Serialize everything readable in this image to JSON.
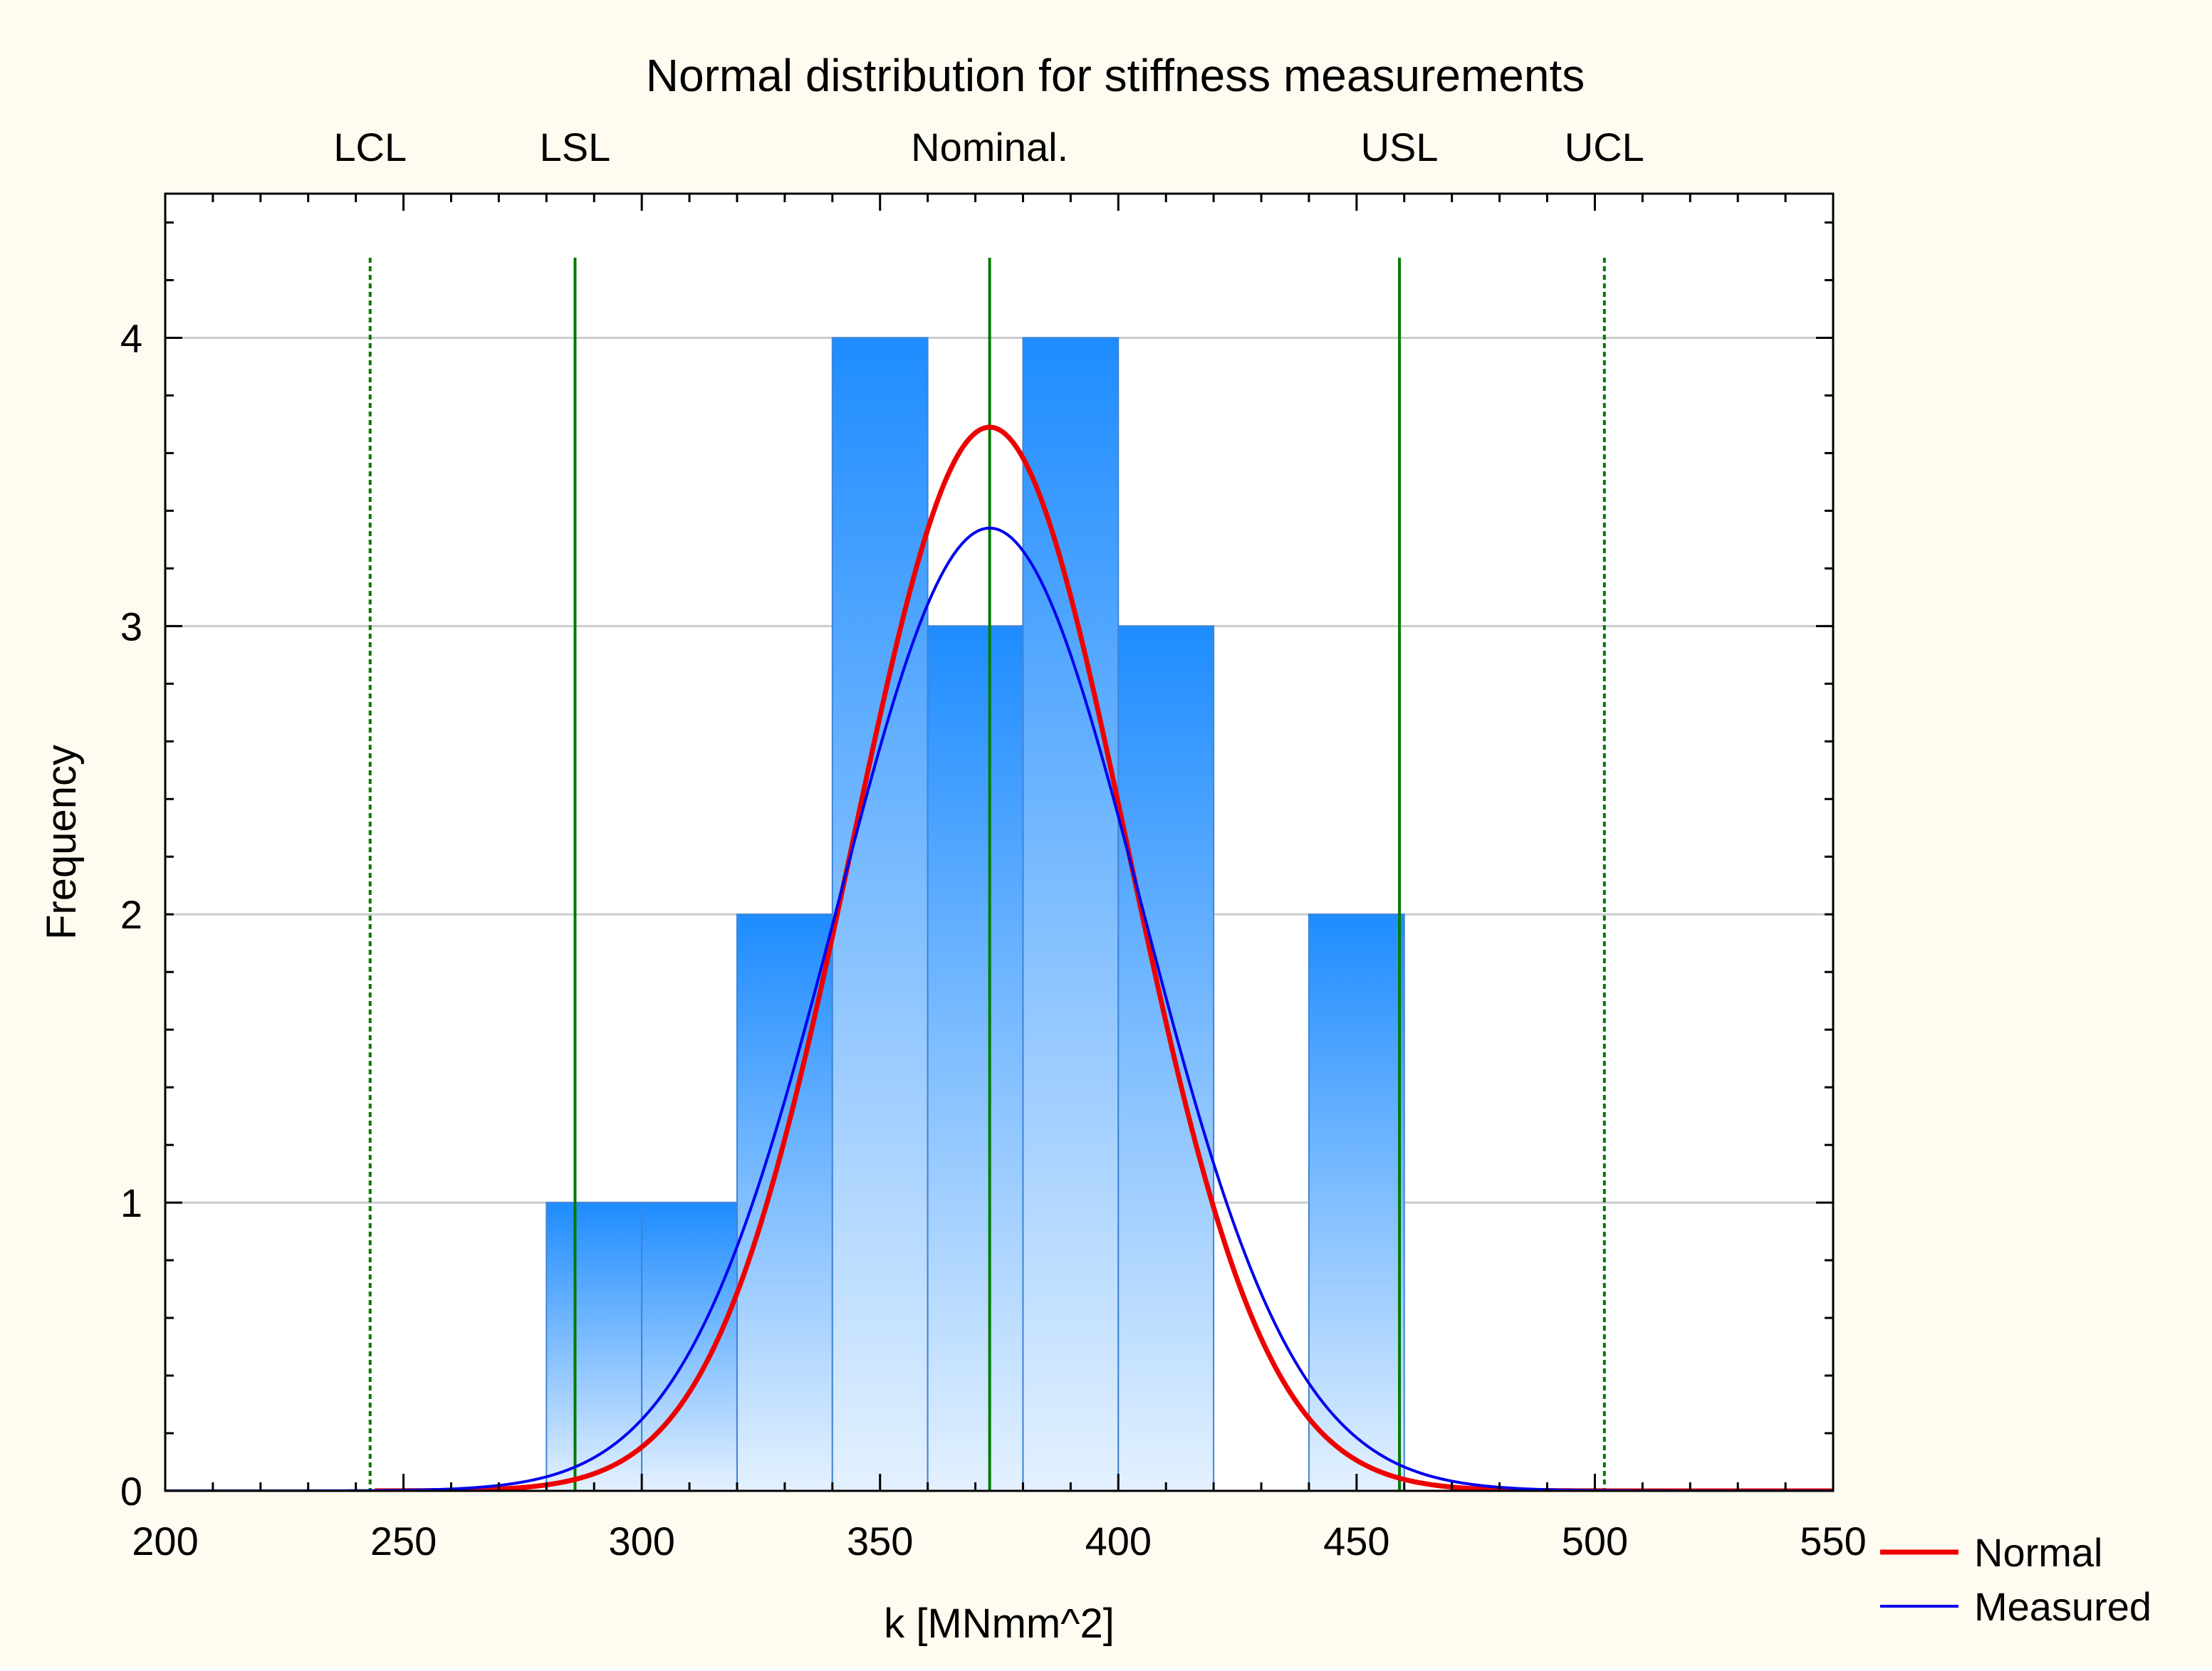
{
  "chart_data": {
    "type": "bar",
    "title": "Normal distribution for stiffness measurements",
    "xlabel": "k [MNmm^2]",
    "ylabel": "Frequency",
    "xlim": [
      200,
      550
    ],
    "ylim": [
      0,
      4.5
    ],
    "x_ticks": [
      200,
      250,
      300,
      350,
      400,
      450,
      500,
      550
    ],
    "y_ticks": [
      0,
      1,
      2,
      3,
      4
    ],
    "grid": true,
    "bins": [
      {
        "from": 280,
        "to": 300,
        "value": 1
      },
      {
        "from": 300,
        "to": 320,
        "value": 1
      },
      {
        "from": 320,
        "to": 340,
        "value": 2
      },
      {
        "from": 340,
        "to": 360,
        "value": 4
      },
      {
        "from": 360,
        "to": 380,
        "value": 3
      },
      {
        "from": 380,
        "to": 400,
        "value": 4
      },
      {
        "from": 400,
        "to": 420,
        "value": 3
      },
      {
        "from": 420,
        "to": 440,
        "value": 0
      },
      {
        "from": 440,
        "to": 460,
        "value": 2
      }
    ],
    "reference_lines": [
      {
        "label": "LCL",
        "x": 243,
        "style": "dotted"
      },
      {
        "label": "LSL",
        "x": 286,
        "style": "solid"
      },
      {
        "label": "Nominal.",
        "x": 373,
        "style": "solid"
      },
      {
        "label": "USL",
        "x": 459,
        "style": "solid"
      },
      {
        "label": "UCL",
        "x": 502,
        "style": "dotted"
      }
    ],
    "series": [
      {
        "name": "Normal",
        "type": "line",
        "color": "#ee0000",
        "mean": 373,
        "sd": 28.9,
        "peak": 3.69,
        "x_start": 244,
        "x_end": 550
      },
      {
        "name": "Measured",
        "type": "line",
        "color": "#0000ee",
        "mean": 373,
        "sd": 32.0,
        "peak": 3.34,
        "x_start": 200,
        "x_end": 550
      }
    ],
    "legend": "right-bottom",
    "colors": {
      "background": "#fffbf0",
      "plot_background": "#ffffff",
      "bar_top": "#1e8cff",
      "bar_bottom": "#e4f1ff",
      "bar_edge": "#3f84d6",
      "reference_line": "#007a00",
      "grid": "#cccccc"
    }
  }
}
